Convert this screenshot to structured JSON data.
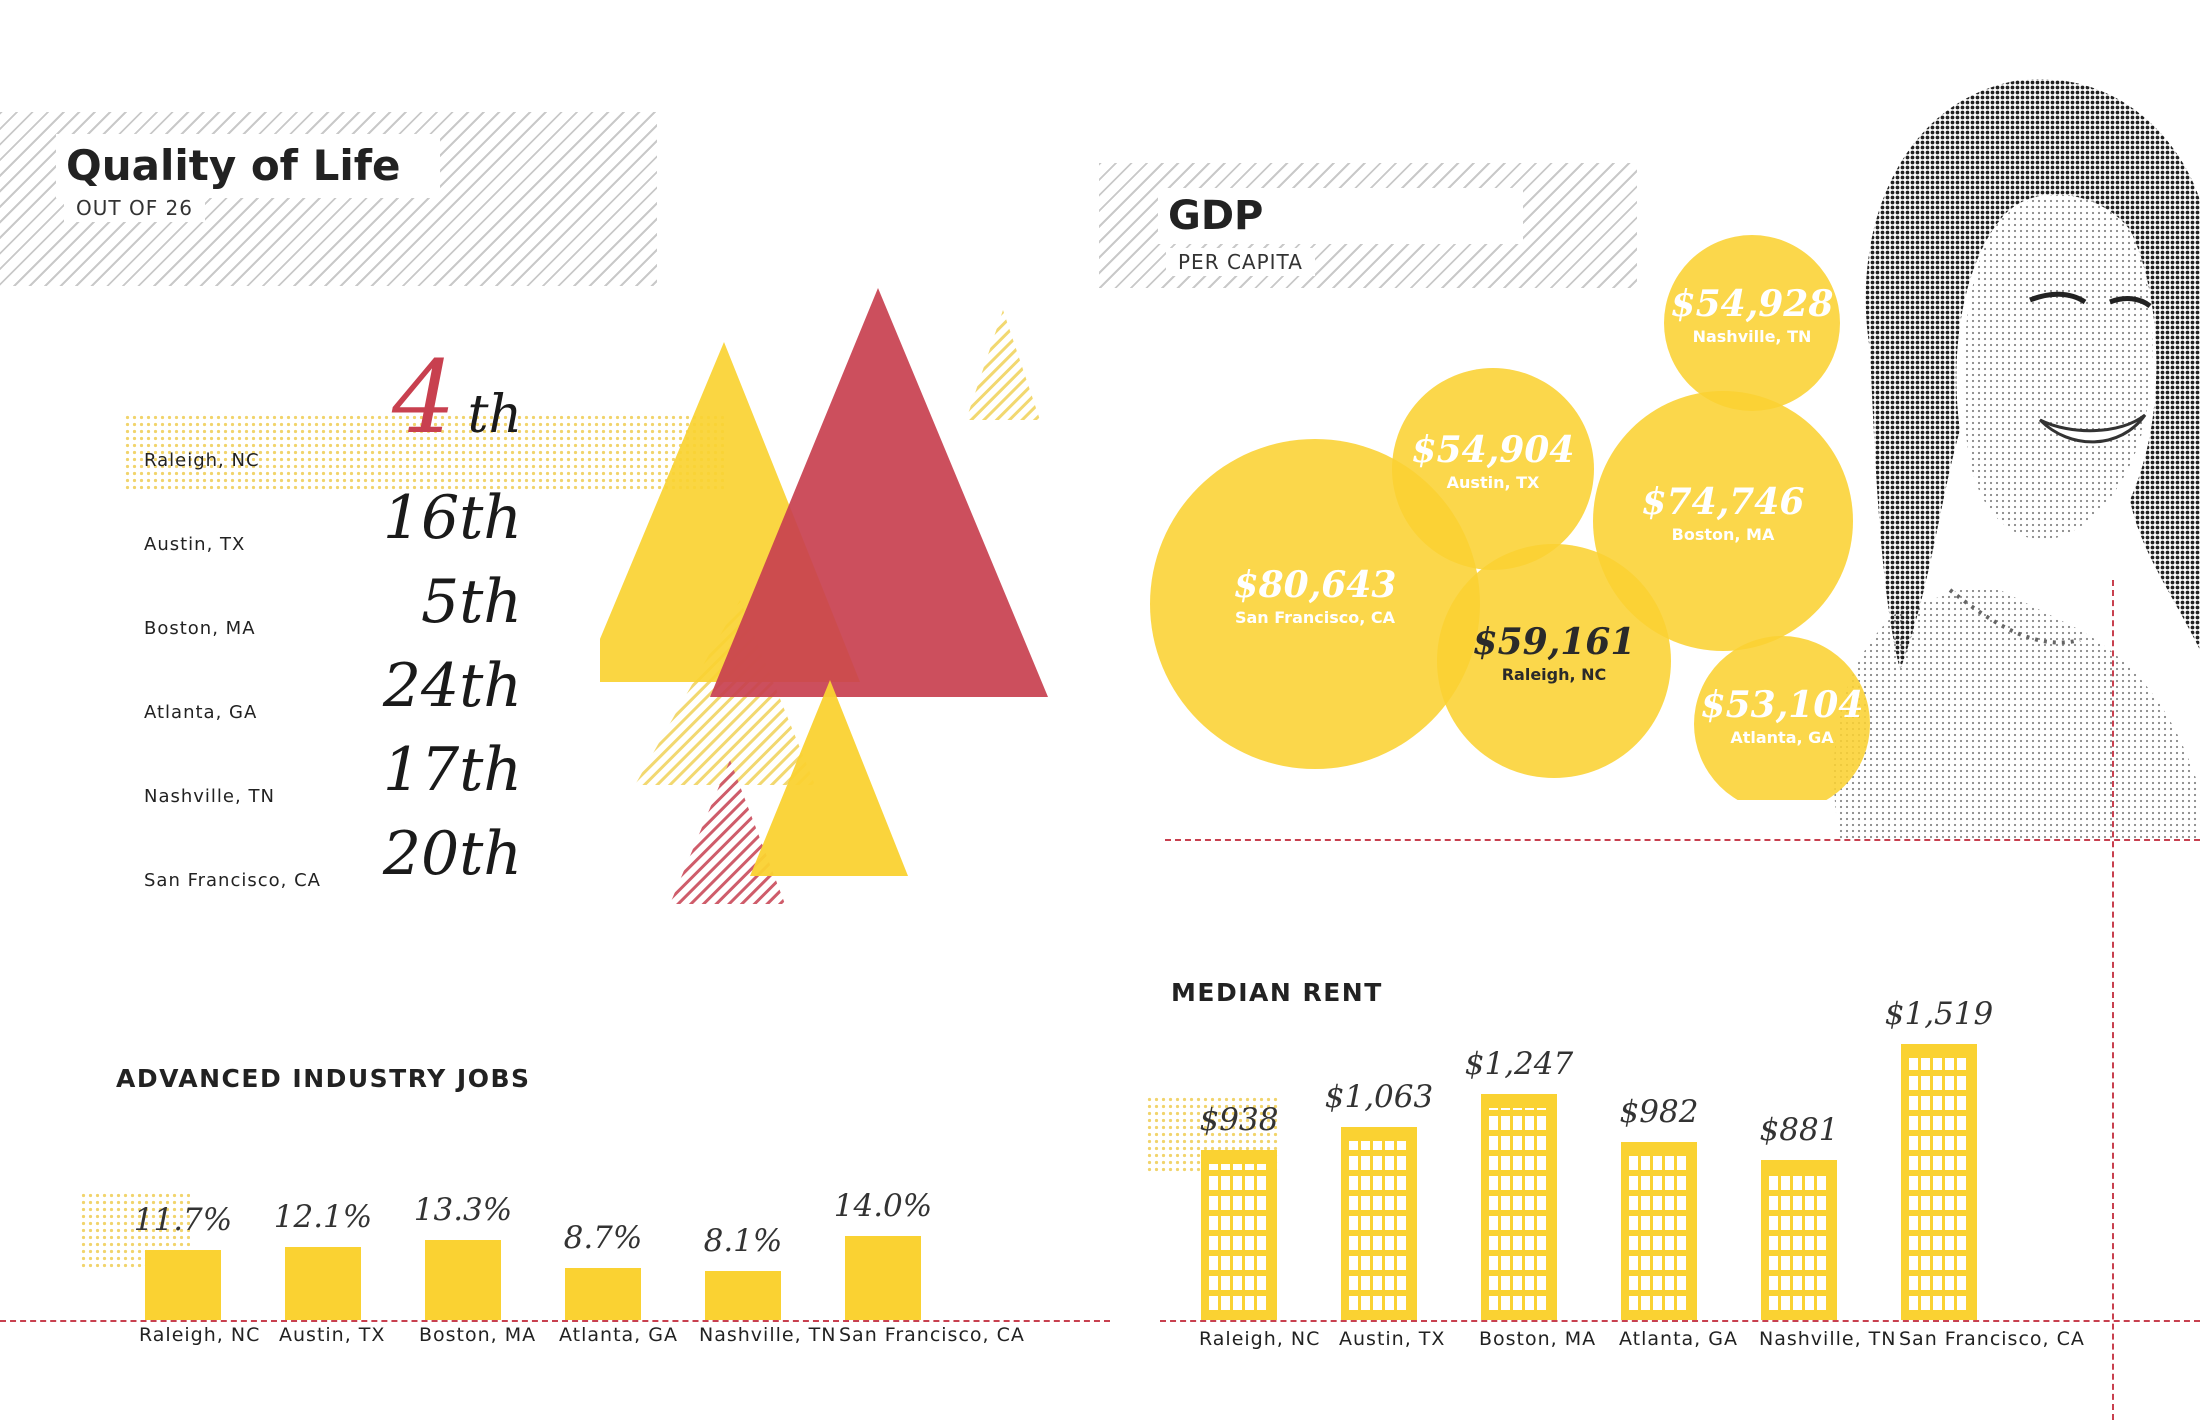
{
  "colors": {
    "yellow": "#fad232",
    "red": "#c8404f",
    "dark": "#222222",
    "dash": "#c8404f"
  },
  "quality": {
    "title": "Quality of Life",
    "subtitle": "OUT OF 26",
    "highlight_color": "#c8404f",
    "rows": [
      {
        "city": "Raleigh, NC",
        "num": "4",
        "suffix": "th"
      },
      {
        "city": "Austin, TX",
        "num": "16",
        "suffix": "th"
      },
      {
        "city": "Boston, MA",
        "num": "5",
        "suffix": "th"
      },
      {
        "city": "Atlanta, GA",
        "num": "24",
        "suffix": "th"
      },
      {
        "city": "Nashville, TN",
        "num": "17",
        "suffix": "th"
      },
      {
        "city": "San Francisco, CA",
        "num": "20",
        "suffix": "th"
      }
    ]
  },
  "gdp": {
    "title": "GDP",
    "subtitle": "PER CAPITA"
  },
  "jobs": {
    "title": "ADVANCED INDUSTRY JOBS"
  },
  "rent": {
    "title": "MEDIAN RENT"
  },
  "photo": {
    "description_icon": "woman-portrait-halftone-icon"
  },
  "chart_data": [
    {
      "type": "table",
      "title": "Quality of Life",
      "subtitle": "OUT OF 26",
      "categories": [
        "Raleigh, NC",
        "Austin, TX",
        "Boston, MA",
        "Atlanta, GA",
        "Nashville, TN",
        "San Francisco, CA"
      ],
      "values": [
        4,
        16,
        5,
        24,
        17,
        20
      ],
      "labels": [
        "4th",
        "16th",
        "5th",
        "24th",
        "17th",
        "20th"
      ]
    },
    {
      "type": "scatter",
      "title": "GDP",
      "subtitle": "PER CAPITA",
      "categories": [
        "Nashville, TN",
        "Austin, TX",
        "Boston, MA",
        "San Francisco, CA",
        "Raleigh, NC",
        "Atlanta, GA"
      ],
      "values": [
        54928,
        54904,
        74746,
        80643,
        59161,
        53104
      ],
      "labels": [
        "$54,928",
        "$54,904",
        "$74,746",
        "$80,643",
        "$59,161",
        "$53,104"
      ]
    },
    {
      "type": "bar",
      "title": "ADVANCED INDUSTRY JOBS",
      "categories": [
        "Raleigh, NC",
        "Austin, TX",
        "Boston, MA",
        "Atlanta, GA",
        "Nashville, TN",
        "San Francisco, CA"
      ],
      "values": [
        11.7,
        12.1,
        13.3,
        8.7,
        8.1,
        14.0
      ],
      "labels": [
        "11.7%",
        "12.1%",
        "13.3%",
        "8.7%",
        "8.1%",
        "14.0%"
      ]
    },
    {
      "type": "bar",
      "title": "MEDIAN RENT",
      "categories": [
        "Raleigh, NC",
        "Austin, TX",
        "Boston, MA",
        "Atlanta, GA",
        "Nashville, TN",
        "San Francisco, CA"
      ],
      "values": [
        938,
        1063,
        1247,
        982,
        881,
        1519
      ],
      "labels": [
        "$938",
        "$1,063",
        "$1,247",
        "$982",
        "$881",
        "$1,519"
      ]
    }
  ]
}
